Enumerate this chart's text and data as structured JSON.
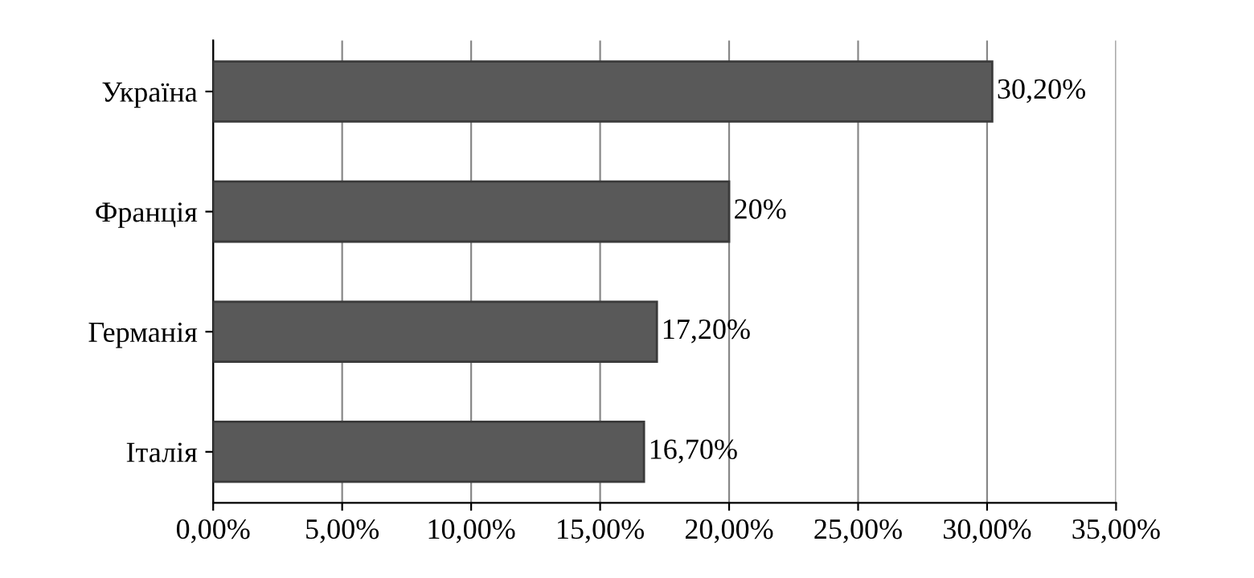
{
  "chart_data": {
    "type": "bar",
    "orientation": "horizontal",
    "categories": [
      "Україна",
      "Франція",
      "Германія",
      "Італія"
    ],
    "values": [
      30.2,
      20,
      17.2,
      16.7
    ],
    "value_labels": [
      "30,20%",
      "20%",
      "17,20%",
      "16,70%"
    ],
    "color": "#595959",
    "xlim": [
      0,
      35
    ],
    "xticks": [
      {
        "value": 0,
        "label": "0,00%"
      },
      {
        "value": 5,
        "label": "5,00%"
      },
      {
        "value": 10,
        "label": "10,00%"
      },
      {
        "value": 15,
        "label": "15,00%"
      },
      {
        "value": 20,
        "label": "20,00%"
      },
      {
        "value": 25,
        "label": "25,00%"
      },
      {
        "value": 30,
        "label": "30,00%"
      },
      {
        "value": 35,
        "label": "35,00%"
      }
    ],
    "grid": "x"
  }
}
